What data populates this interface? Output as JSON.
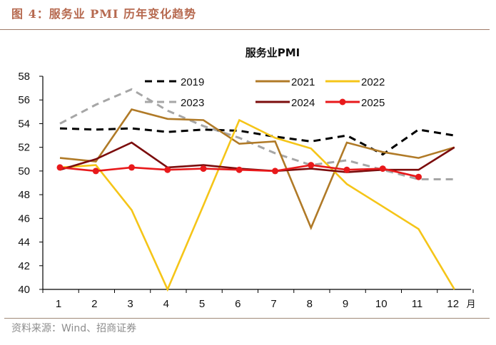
{
  "figure": {
    "title": "图 4：服务业 PMI 历年变化趋势",
    "source": "资料来源：Wind、招商证券"
  },
  "chart_data": {
    "type": "line",
    "title": "服务业PMI",
    "xlabel": "",
    "x_unit_label": "月",
    "ylabel": "",
    "categories": [
      "1",
      "2",
      "3",
      "4",
      "5",
      "6",
      "7",
      "8",
      "9",
      "10",
      "11",
      "12"
    ],
    "ylim": [
      40,
      58
    ],
    "yticks": [
      40,
      42,
      44,
      46,
      48,
      50,
      52,
      54,
      56,
      58
    ],
    "grid": false,
    "legend_position": "top-center",
    "series": [
      {
        "name": "2019",
        "color": "#000000",
        "style": "dashed",
        "marker": false,
        "values": [
          53.6,
          53.5,
          53.6,
          53.3,
          53.5,
          53.4,
          52.9,
          52.5,
          53.0,
          51.4,
          53.5,
          53.0
        ]
      },
      {
        "name": "2021",
        "color": "#b07a27",
        "style": "solid",
        "marker": false,
        "values": [
          51.1,
          50.8,
          55.2,
          54.4,
          54.3,
          52.3,
          52.5,
          45.2,
          52.4,
          51.6,
          51.1,
          52.0
        ]
      },
      {
        "name": "2022",
        "color": "#f5c518",
        "style": "solid",
        "marker": false,
        "values": [
          50.3,
          50.5,
          46.7,
          40.0,
          47.1,
          54.3,
          52.8,
          51.9,
          48.9,
          47.0,
          45.1,
          39.4
        ]
      },
      {
        "name": "2023",
        "color": "#a6a6a6",
        "style": "dashed",
        "marker": false,
        "values": [
          54.0,
          55.6,
          56.9,
          55.1,
          53.8,
          52.8,
          51.5,
          50.5,
          50.9,
          50.1,
          49.3,
          49.3
        ]
      },
      {
        "name": "2024",
        "color": "#7b0c0c",
        "style": "solid",
        "marker": false,
        "values": [
          50.1,
          51.0,
          52.4,
          50.3,
          50.5,
          50.2,
          50.0,
          50.2,
          49.9,
          50.1,
          50.1,
          52.0
        ]
      },
      {
        "name": "2025",
        "color": "#e8191b",
        "style": "solid",
        "marker": true,
        "values": [
          50.3,
          50.0,
          50.3,
          50.1,
          50.2,
          50.1,
          50.0,
          50.5,
          50.1,
          50.2,
          49.5,
          null
        ]
      }
    ]
  }
}
